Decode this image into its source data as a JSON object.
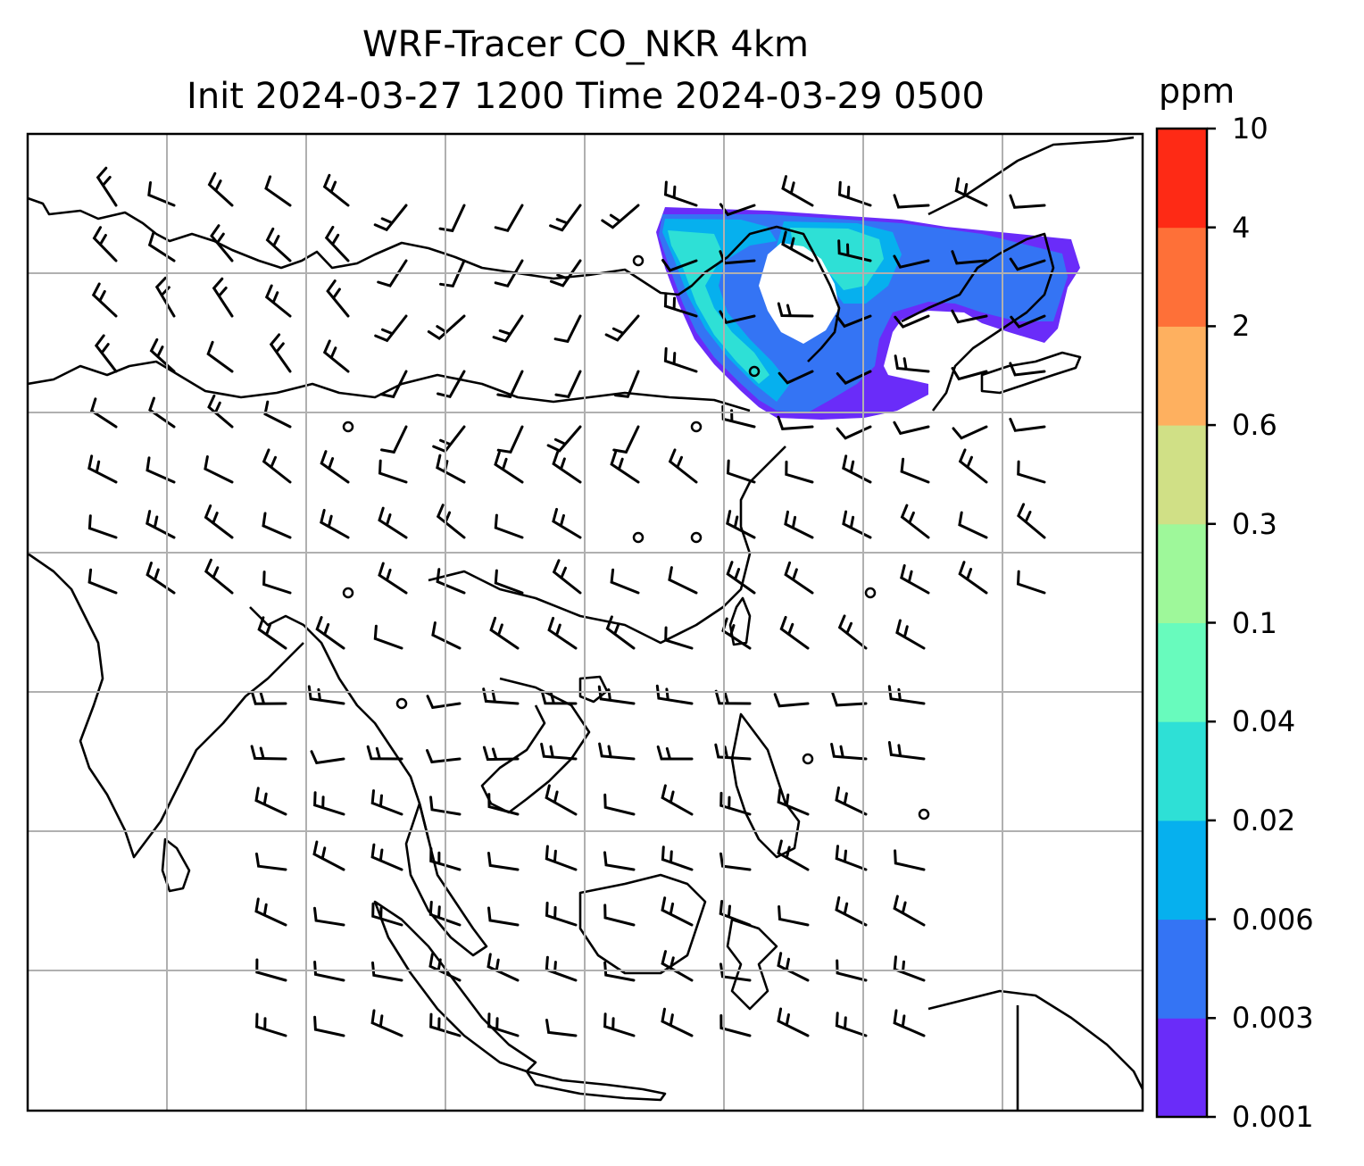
{
  "title": {
    "line1": "WRF-Tracer CO_NKR 4km",
    "line2": "Init 2024-03-27 1200 Time 2024-03-29 0500"
  },
  "colorbar": {
    "unit": "ppm",
    "levels": [
      "0.001",
      "0.003",
      "0.006",
      "0.02",
      "0.04",
      "0.1",
      "0.3",
      "0.6",
      "2",
      "4",
      "10"
    ],
    "colors": [
      "#6a2cf9",
      "#3474f4",
      "#06b0ee",
      "#2ee0d6",
      "#68fbbd",
      "#9ef89a",
      "#d0e086",
      "#feb05f",
      "#fe7038",
      "#fe2a15"
    ]
  },
  "legend": {
    "calm_wind_icon": "circle-icon",
    "wind_barb_icon": "wind-barb-icon"
  },
  "colors": {
    "coastline": "#000000",
    "gridline": "#b0b0b0",
    "frame": "#000000"
  }
}
